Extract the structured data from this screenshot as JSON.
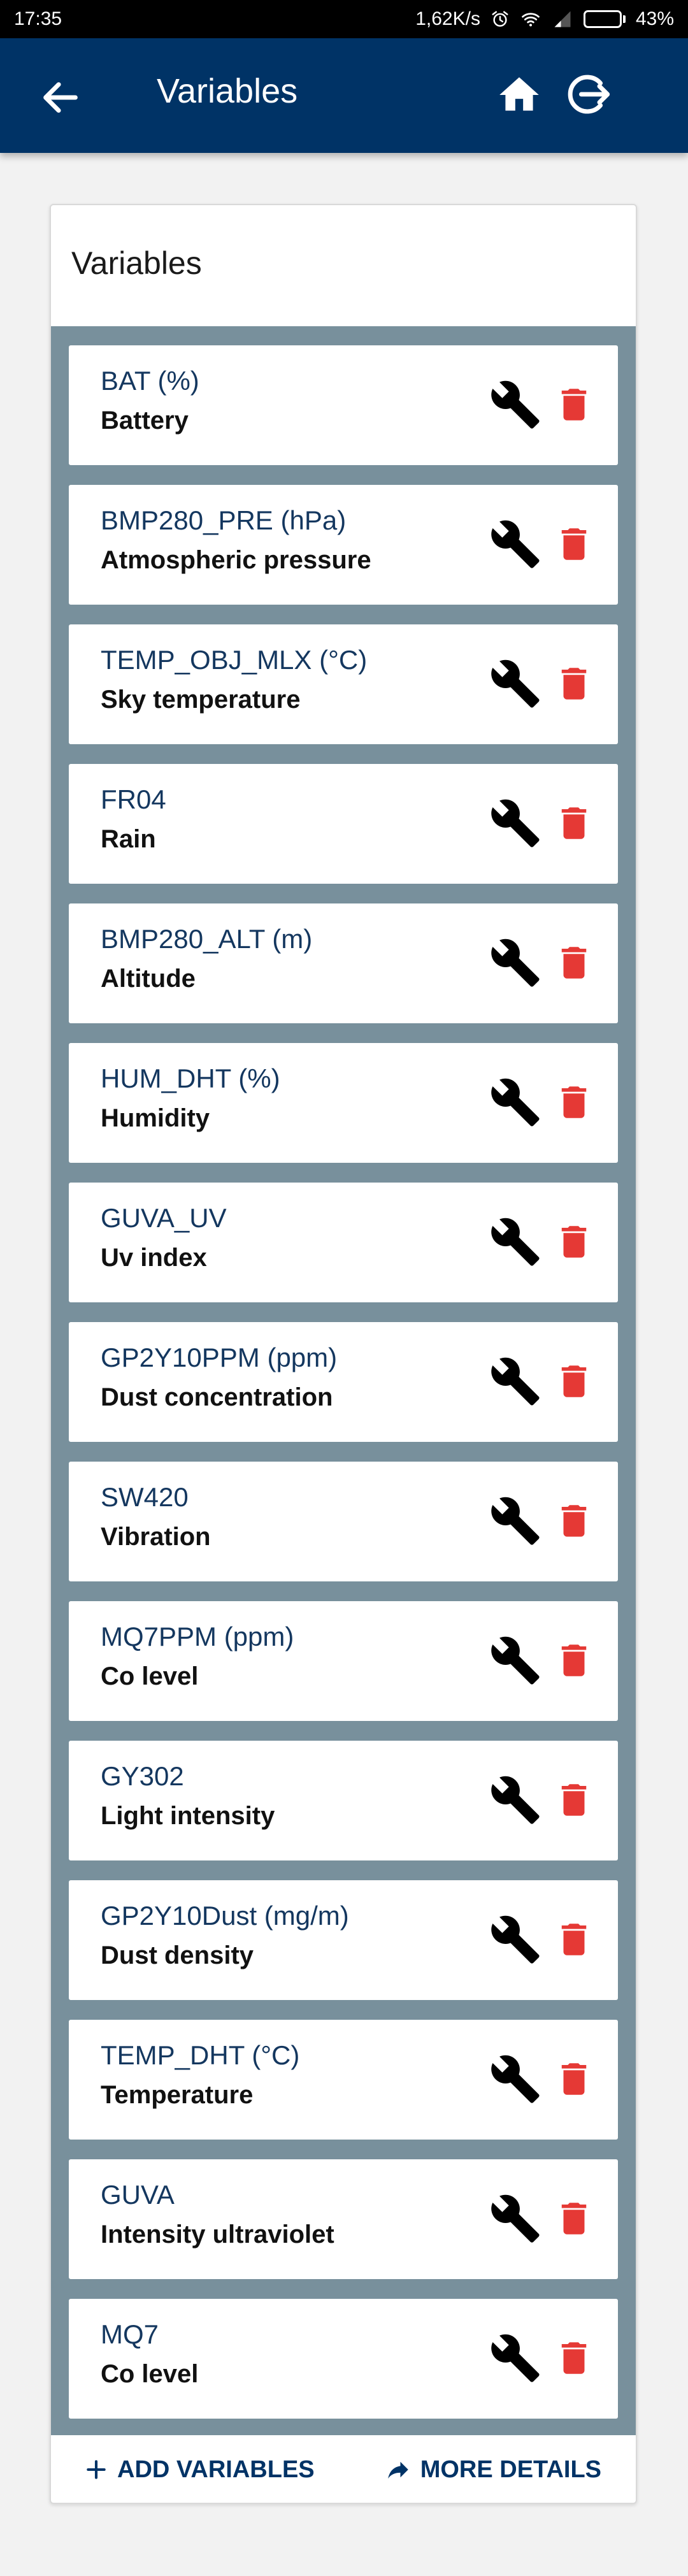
{
  "status_bar": {
    "time": "17:35",
    "network_speed": "1,62K/s",
    "battery": "43%",
    "battery_level": 0.43,
    "icons": [
      "alarm-icon",
      "wifi-icon",
      "signal-icon",
      "battery-icon"
    ]
  },
  "header": {
    "title": "Variables",
    "back_icon": "arrow-left-icon",
    "home_icon": "home-icon",
    "logout_icon": "logout-icon"
  },
  "card": {
    "title": "Variables",
    "items": [
      {
        "name": "BAT (%)",
        "description": "Battery"
      },
      {
        "name": "BMP280_PRE (hPa)",
        "description": "Atmospheric pressure"
      },
      {
        "name": "TEMP_OBJ_MLX (°C)",
        "description": "Sky temperature"
      },
      {
        "name": "FR04",
        "description": "Rain"
      },
      {
        "name": "BMP280_ALT (m)",
        "description": "Altitude"
      },
      {
        "name": "HUM_DHT (%)",
        "description": "Humidity"
      },
      {
        "name": "GUVA_UV",
        "description": "Uv index"
      },
      {
        "name": "GP2Y10PPM (ppm)",
        "description": "Dust concentration"
      },
      {
        "name": "SW420",
        "description": "Vibration"
      },
      {
        "name": "MQ7PPM (ppm)",
        "description": "Co level"
      },
      {
        "name": "GY302",
        "description": "Light intensity"
      },
      {
        "name": "GP2Y10Dust (mg/m)",
        "description": "Dust density"
      },
      {
        "name": "TEMP_DHT (°C)",
        "description": "Temperature"
      },
      {
        "name": "GUVA",
        "description": "Intensity ultraviolet"
      },
      {
        "name": "MQ7",
        "description": "Co level"
      }
    ],
    "footer": {
      "add_label": "ADD VARIABLES",
      "details_label": "MORE DETAILS"
    }
  },
  "colors": {
    "app_bar": "#003366",
    "list_background": "#78909c",
    "item_name": "#14375f",
    "delete_icon": "#e53935",
    "accent_text": "#003366"
  }
}
